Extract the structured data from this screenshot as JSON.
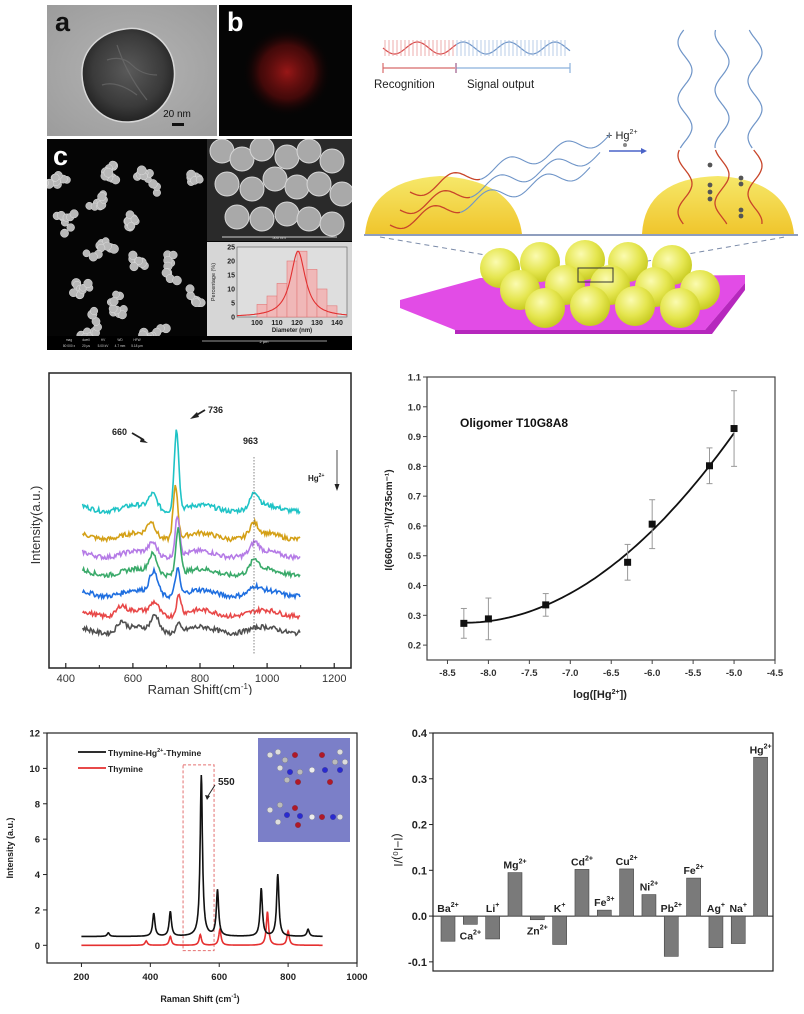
{
  "figure": {
    "panel_labels": {
      "a": "a",
      "b": "b",
      "c": "c"
    },
    "tem": {
      "scale_bar": "20 nm"
    },
    "sem": {
      "inset_scale": "500 nm",
      "main_scale": "2 μm",
      "info_headers": [
        "mag",
        "dwell",
        "HV",
        "WD",
        "HFW"
      ],
      "info_values": [
        "80 000 x",
        "20 μs",
        "5.00 kV",
        "4.7 mm",
        "5.18 μm"
      ]
    },
    "schematic": {
      "recognition_label": "Recognition",
      "signal_label": "Signal output",
      "reagent_label": "+ Hg",
      "reagent_charge": "2+"
    }
  },
  "chart_data": [
    {
      "id": "size-histogram",
      "type": "bar",
      "title": "",
      "xlabel": "Diameter (nm)",
      "ylabel": "Percentage (%)",
      "categories": [
        "100-105",
        "105-110",
        "110-115",
        "115-120",
        "120-125",
        "125-130",
        "130-135",
        "135-140"
      ],
      "values": [
        4.5,
        7.5,
        12,
        20,
        23.5,
        17,
        10,
        4
      ],
      "bin_start": [
        100,
        105,
        110,
        115,
        120,
        125,
        130,
        135
      ],
      "bin_width": 5,
      "fit": {
        "type": "lorentzian",
        "center": 120.5,
        "peak": 23.5
      },
      "xlim": [
        90,
        145
      ],
      "ylim": [
        0,
        25
      ],
      "xticks": [
        100,
        110,
        120,
        130,
        140
      ],
      "yticks": [
        0,
        5,
        10,
        15,
        20,
        25
      ]
    },
    {
      "id": "raman-spectra",
      "type": "line",
      "title": "",
      "xlabel": "Raman Shift(cm",
      "xlabel_sup": "-1",
      "xlabel_end": ")",
      "ylabel": "Intensity(a.u.)",
      "xlim": [
        350,
        1250
      ],
      "xticks": [
        400,
        600,
        800,
        1000,
        1200
      ],
      "series_range": [
        450,
        1100
      ],
      "annotations": [
        "660",
        "736",
        "963"
      ],
      "arrow_label": "Hg",
      "arrow_label_sup": "2+",
      "series": [
        {
          "name": "spectrum-1",
          "color": "#1fc3c6",
          "offset": 7.0,
          "peaks": [
            [
              660,
              0.55
            ],
            [
              730,
              3.1
            ],
            [
              963,
              0.55
            ]
          ]
        },
        {
          "name": "spectrum-2",
          "color": "#d4a017",
          "offset": 5.6,
          "peaks": [
            [
              655,
              0.55
            ],
            [
              727,
              2.0
            ],
            [
              960,
              0.45
            ]
          ]
        },
        {
          "name": "spectrum-3",
          "color": "#b57be6",
          "offset": 4.7,
          "peaks": [
            [
              660,
              0.45
            ],
            [
              733,
              1.55
            ],
            [
              963,
              0.4
            ]
          ]
        },
        {
          "name": "spectrum-4",
          "color": "#3aaa6a",
          "offset": 3.8,
          "peaks": [
            [
              660,
              0.7
            ],
            [
              735,
              1.8
            ],
            [
              963,
              0.45
            ]
          ]
        },
        {
          "name": "spectrum-5",
          "color": "#1f6fe0",
          "offset": 2.75,
          "peaks": [
            [
              662,
              0.85
            ],
            [
              733,
              1.0
            ],
            [
              963,
              0.2
            ]
          ]
        },
        {
          "name": "spectrum-6",
          "color": "#e84848",
          "offset": 1.75,
          "peaks": [
            [
              565,
              0.3
            ],
            [
              665,
              0.45
            ],
            [
              737,
              0.75
            ]
          ]
        },
        {
          "name": "spectrum-7",
          "color": "#505050",
          "offset": 0.9,
          "peaks": [
            [
              565,
              0.35
            ],
            [
              667,
              0.6
            ],
            [
              735,
              0.3
            ]
          ]
        }
      ]
    },
    {
      "id": "ratio-vs-concentration",
      "type": "scatter",
      "title": "Oligomer T10G8A8",
      "xlabel": "log([Hg",
      "xlabel_sup": "2+",
      "xlabel_end": "])",
      "ylabel": "I(660cm⁻¹)/I(735cm⁻¹)",
      "xlim": [
        -8.75,
        -4.5
      ],
      "ylim": [
        0.15,
        1.1
      ],
      "xticks": [
        -8.5,
        -8.0,
        -7.5,
        -7.0,
        -6.5,
        -6.0,
        -5.5,
        -5.0,
        -4.5
      ],
      "yticks": [
        0.2,
        0.3,
        0.4,
        0.5,
        0.6,
        0.7,
        0.8,
        0.9,
        1.0,
        1.1
      ],
      "x": [
        -8.3,
        -8.0,
        -7.3,
        -6.3,
        -6.0,
        -5.3,
        -5.0
      ],
      "y": [
        0.273,
        0.288,
        0.335,
        0.478,
        0.606,
        0.802,
        0.927
      ],
      "err": [
        0.05,
        0.07,
        0.038,
        0.06,
        0.082,
        0.06,
        0.127
      ],
      "fit": {
        "type": "polynomial",
        "points": [
          [
            -8.3,
            0.275
          ],
          [
            -8.0,
            0.282
          ],
          [
            -7.5,
            0.31
          ],
          [
            -7.0,
            0.36
          ],
          [
            -6.5,
            0.44
          ],
          [
            -6.0,
            0.57
          ],
          [
            -5.5,
            0.73
          ],
          [
            -5.0,
            0.92
          ]
        ]
      }
    },
    {
      "id": "raman-thymine",
      "type": "line",
      "title": "",
      "xlabel": "Raman Shift (cm",
      "xlabel_sup": "-1",
      "xlabel_end": ")",
      "ylabel": "Intensity (a.u.)",
      "xlim": [
        100,
        1000
      ],
      "ylim": [
        -1,
        12
      ],
      "xticks": [
        200,
        400,
        600,
        800,
        1000
      ],
      "yticks": [
        0,
        2,
        4,
        6,
        8,
        10,
        12
      ],
      "annotation": "550",
      "highlight_box": [
        495,
        585
      ],
      "series": [
        {
          "name": "Thymine-Hg",
          "name_sup": "2+",
          "name_end": "-Thymine",
          "color": "#111111",
          "baseline": 0.5,
          "x_range": [
            200,
            900
          ],
          "peaks": [
            [
              278,
              0.2
            ],
            [
              410,
              1.3
            ],
            [
              458,
              1.4
            ],
            [
              548,
              9.1
            ],
            [
              595,
              2.6
            ],
            [
              722,
              2.7
            ],
            [
              770,
              3.5
            ],
            [
              858,
              0.4
            ]
          ]
        },
        {
          "name": "Thymine",
          "color": "#e53030",
          "baseline": 0.0,
          "x_range": [
            200,
            900
          ],
          "peaks": [
            [
              388,
              0.25
            ],
            [
              458,
              0.5
            ],
            [
              545,
              0.6
            ],
            [
              602,
              0.9
            ],
            [
              740,
              1.9
            ],
            [
              800,
              0.8
            ]
          ]
        }
      ]
    },
    {
      "id": "selectivity",
      "type": "bar",
      "title": "",
      "xlabel": "",
      "ylabel": "(I−I₀)/I",
      "ylim": [
        -0.12,
        0.4
      ],
      "yticks": [
        -0.1,
        0.0,
        0.1,
        0.2,
        0.3,
        0.4
      ],
      "categories": [
        {
          "ion": "Ba",
          "charge": "2+"
        },
        {
          "ion": "Ca",
          "charge": "2+"
        },
        {
          "ion": "Li",
          "charge": "+"
        },
        {
          "ion": "Mg",
          "charge": "2+"
        },
        {
          "ion": "Zn",
          "charge": "2+"
        },
        {
          "ion": "K",
          "charge": "+"
        },
        {
          "ion": "Cd",
          "charge": "2+"
        },
        {
          "ion": "Fe",
          "charge": "3+"
        },
        {
          "ion": "Cu",
          "charge": "2+"
        },
        {
          "ion": "Ni",
          "charge": "2+"
        },
        {
          "ion": "Pb",
          "charge": "2+"
        },
        {
          "ion": "Fe",
          "charge": "2+"
        },
        {
          "ion": "Ag",
          "charge": "+"
        },
        {
          "ion": "Na",
          "charge": "+"
        },
        {
          "ion": "Hg",
          "charge": "2+"
        }
      ],
      "values": [
        -0.055,
        -0.018,
        -0.05,
        0.095,
        -0.008,
        -0.062,
        0.102,
        0.013,
        0.103,
        0.047,
        -0.088,
        0.083,
        -0.069,
        -0.06,
        0.347
      ],
      "bar_color": "#7a7a7a"
    }
  ]
}
